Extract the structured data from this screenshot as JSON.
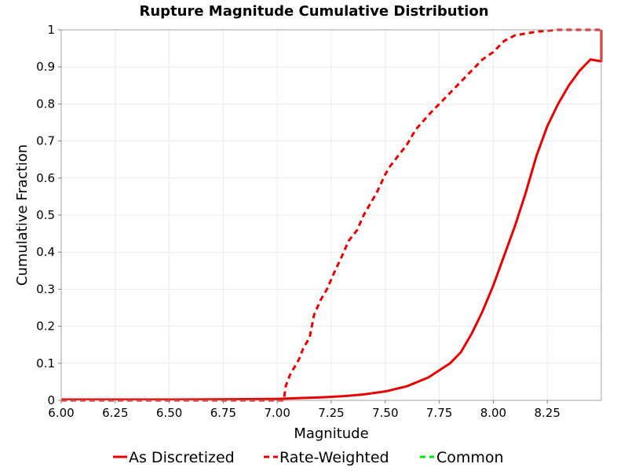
{
  "colors": {
    "background": "#ffffff",
    "plot_border": "#a0a0a0",
    "gridline": "#ebebeb",
    "as_discretized": "#e60000",
    "rate_weighted": "#e60000",
    "common": "#00e600"
  },
  "chart_data": {
    "type": "line",
    "title": "Rupture Magnitude Cumulative Distribution",
    "xlabel": "Magnitude",
    "ylabel": "Cumulative Fraction",
    "xlim": [
      6.0,
      8.5
    ],
    "ylim": [
      0.0,
      1.0
    ],
    "x_ticks": [
      "6.00",
      "6.25",
      "6.50",
      "6.75",
      "7.00",
      "7.25",
      "7.50",
      "7.75",
      "8.00",
      "8.25"
    ],
    "y_ticks": [
      "0",
      "0.1",
      "0.2",
      "0.3",
      "0.4",
      "0.5",
      "0.6",
      "0.7",
      "0.8",
      "0.9",
      "1"
    ],
    "grid": true,
    "legend_position": "bottom",
    "series": [
      {
        "name": "As Discretized",
        "style": "solid",
        "points": [
          [
            6.0,
            0.002
          ],
          [
            6.5,
            0.002
          ],
          [
            6.8,
            0.003
          ],
          [
            7.0,
            0.004
          ],
          [
            7.2,
            0.008
          ],
          [
            7.3,
            0.011
          ],
          [
            7.4,
            0.016
          ],
          [
            7.5,
            0.024
          ],
          [
            7.6,
            0.038
          ],
          [
            7.7,
            0.062
          ],
          [
            7.8,
            0.1
          ],
          [
            7.85,
            0.13
          ],
          [
            7.9,
            0.18
          ],
          [
            7.95,
            0.24
          ],
          [
            8.0,
            0.31
          ],
          [
            8.05,
            0.39
          ],
          [
            8.1,
            0.47
          ],
          [
            8.15,
            0.56
          ],
          [
            8.2,
            0.66
          ],
          [
            8.25,
            0.74
          ],
          [
            8.3,
            0.8
          ],
          [
            8.35,
            0.85
          ],
          [
            8.4,
            0.89
          ],
          [
            8.45,
            0.92
          ],
          [
            8.5,
            0.915
          ],
          [
            8.5,
            1.0
          ]
        ]
      },
      {
        "name": "Rate-Weighted",
        "style": "dashed",
        "points": [
          [
            6.0,
            0.0
          ],
          [
            7.03,
            0.0
          ],
          [
            7.04,
            0.04
          ],
          [
            7.06,
            0.07
          ],
          [
            7.08,
            0.09
          ],
          [
            7.1,
            0.11
          ],
          [
            7.12,
            0.14
          ],
          [
            7.15,
            0.17
          ],
          [
            7.17,
            0.23
          ],
          [
            7.2,
            0.27
          ],
          [
            7.23,
            0.3
          ],
          [
            7.26,
            0.34
          ],
          [
            7.3,
            0.39
          ],
          [
            7.33,
            0.43
          ],
          [
            7.37,
            0.46
          ],
          [
            7.4,
            0.5
          ],
          [
            7.43,
            0.53
          ],
          [
            7.46,
            0.56
          ],
          [
            7.5,
            0.61
          ],
          [
            7.52,
            0.63
          ],
          [
            7.56,
            0.66
          ],
          [
            7.6,
            0.69
          ],
          [
            7.64,
            0.73
          ],
          [
            7.7,
            0.77
          ],
          [
            7.75,
            0.8
          ],
          [
            7.8,
            0.83
          ],
          [
            7.85,
            0.86
          ],
          [
            7.9,
            0.89
          ],
          [
            7.95,
            0.92
          ],
          [
            8.0,
            0.94
          ],
          [
            8.05,
            0.97
          ],
          [
            8.1,
            0.985
          ],
          [
            8.2,
            0.995
          ],
          [
            8.3,
            1.0
          ],
          [
            8.5,
            1.0
          ]
        ]
      },
      {
        "name": "Common",
        "style": "dashed",
        "points": []
      }
    ]
  }
}
